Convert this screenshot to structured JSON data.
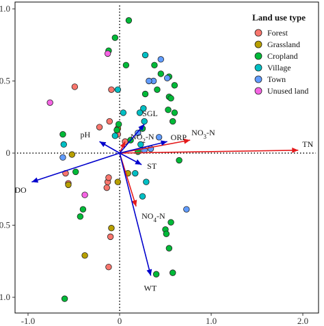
{
  "chart_data": {
    "type": "scatter",
    "title": "",
    "xlabel": "",
    "ylabel": "",
    "xlim": [
      -1.05,
      2.1
    ],
    "ylim": [
      -1.1,
      1.05
    ],
    "x_ticks": [
      -1.0,
      0.0,
      1.0,
      2.0
    ],
    "x_tick_labels": [
      "-1.0",
      "0",
      "1.0",
      "2.0"
    ],
    "y_ticks": [
      -1.0,
      -0.5,
      0,
      0.5,
      1.0
    ],
    "y_tick_labels": [
      "-1.0",
      "-0.5",
      "0",
      "0.5",
      "1.0"
    ],
    "grid": false,
    "reference_lines": [
      "x = 0 (dotted)",
      "y = 0 (dotted)"
    ],
    "legend": {
      "title": "Land use type",
      "position": "top-right",
      "entries": [
        {
          "name": "Forest",
          "color": "#F8766D"
        },
        {
          "name": "Grassland",
          "color": "#B79F00"
        },
        {
          "name": "Cropland",
          "color": "#00BA38"
        },
        {
          "name": "Village",
          "color": "#00BFC4"
        },
        {
          "name": "Town",
          "color": "#619CFF"
        },
        {
          "name": "Unused land",
          "color": "#F564E3"
        }
      ]
    },
    "series": [
      {
        "name": "Forest",
        "color": "#F8766D",
        "points": [
          [
            -0.49,
            0.46
          ],
          [
            -0.09,
            0.44
          ],
          [
            -0.59,
            -0.14
          ],
          [
            -0.56,
            -0.21
          ],
          [
            -0.13,
            -0.2
          ],
          [
            -0.14,
            -0.24
          ],
          [
            -0.12,
            -0.17
          ],
          [
            -0.1,
            -0.58
          ],
          [
            -0.12,
            -0.79
          ],
          [
            0.06,
            0.08
          ],
          [
            -0.22,
            0.18
          ],
          [
            -0.02,
            0.13
          ],
          [
            -0.11,
            0.22
          ]
        ]
      },
      {
        "name": "Grassland",
        "color": "#B79F00",
        "points": [
          [
            -0.52,
            -0.01
          ],
          [
            -0.56,
            -0.22
          ],
          [
            -0.38,
            -0.71
          ],
          [
            -0.09,
            -0.52
          ],
          [
            -0.02,
            -0.2
          ],
          [
            0.09,
            -0.14
          ],
          [
            -0.02,
            0.17
          ]
        ]
      },
      {
        "name": "Cropland",
        "color": "#00BA38",
        "points": [
          [
            0.1,
            0.92
          ],
          [
            -0.05,
            0.8
          ],
          [
            -0.12,
            0.71
          ],
          [
            0.07,
            0.61
          ],
          [
            0.38,
            0.61
          ],
          [
            0.45,
            0.55
          ],
          [
            0.54,
            0.53
          ],
          [
            0.41,
            0.44
          ],
          [
            0.6,
            0.47
          ],
          [
            0.28,
            0.41
          ],
          [
            0.54,
            0.39
          ],
          [
            0.56,
            0.38
          ],
          [
            0.53,
            0.3
          ],
          [
            0.6,
            0.28
          ],
          [
            0.58,
            0.22
          ],
          [
            -0.48,
            -0.13
          ],
          [
            -0.4,
            -0.39
          ],
          [
            -0.43,
            -0.44
          ],
          [
            -0.6,
            -1.01
          ],
          [
            0.56,
            -0.48
          ],
          [
            0.5,
            -0.53
          ],
          [
            0.51,
            -0.56
          ],
          [
            0.54,
            -0.66
          ],
          [
            0.4,
            -0.84
          ],
          [
            0.58,
            -0.83
          ],
          [
            0.65,
            -0.05
          ],
          [
            -0.62,
            0.13
          ],
          [
            0.2,
            0.01
          ],
          [
            -0.03,
            0.16
          ],
          [
            -0.01,
            0.2
          ],
          [
            0.25,
            0.17
          ],
          [
            0.12,
            0.09
          ]
        ]
      },
      {
        "name": "Village",
        "color": "#00BFC4",
        "points": [
          [
            0.28,
            0.68
          ],
          [
            -0.02,
            0.44
          ],
          [
            0.04,
            0.28
          ],
          [
            0.26,
            0.31
          ],
          [
            0.22,
            0.28
          ],
          [
            -0.61,
            0.06
          ],
          [
            0.17,
            -0.14
          ],
          [
            0.29,
            -0.2
          ],
          [
            0.25,
            -0.3
          ],
          [
            0.23,
            0.06
          ],
          [
            -0.05,
            0.12
          ],
          [
            0.27,
            0.22
          ]
        ]
      },
      {
        "name": "Town",
        "color": "#619CFF",
        "points": [
          [
            0.45,
            0.65
          ],
          [
            0.37,
            0.5
          ],
          [
            0.52,
            0.52
          ],
          [
            0.32,
            0.5
          ],
          [
            0.43,
            0.11
          ],
          [
            0.34,
            0.03
          ],
          [
            0.73,
            -0.39
          ],
          [
            -0.62,
            -0.03
          ],
          [
            0.2,
            0.14
          ],
          [
            0.27,
            0.02
          ]
        ]
      },
      {
        "name": "Unused land",
        "color": "#F564E3",
        "points": [
          [
            -0.13,
            0.69
          ],
          [
            -0.76,
            0.35
          ],
          [
            -0.38,
            -0.29
          ]
        ]
      }
    ],
    "vectors": [
      {
        "label": "TN",
        "color": "#e41a1c",
        "x": 1.95,
        "y": 0.02
      },
      {
        "label": "NO3-N",
        "color": "#e41a1c",
        "x": 0.77,
        "y": 0.09
      },
      {
        "label": "NO2-N",
        "color": "#e41a1c",
        "x": 0.06,
        "y": 0.08
      },
      {
        "label": "NO4-N",
        "color": "#e41a1c",
        "x": 0.18,
        "y": -0.37
      },
      {
        "label": "SGL",
        "color": "#0000cc",
        "x": 0.27,
        "y": 0.2
      },
      {
        "label": "ORP",
        "color": "#0000cc",
        "x": 0.52,
        "y": 0.08
      },
      {
        "label": "pH",
        "color": "#0000cc",
        "x": -0.22,
        "y": 0.08
      },
      {
        "label": "ST",
        "color": "#0000cc",
        "x": 0.24,
        "y": -0.08
      },
      {
        "label": "DO",
        "color": "#0000cc",
        "x": -0.96,
        "y": -0.2
      },
      {
        "label": "WT",
        "color": "#0000cc",
        "x": 0.34,
        "y": -0.85
      }
    ]
  }
}
